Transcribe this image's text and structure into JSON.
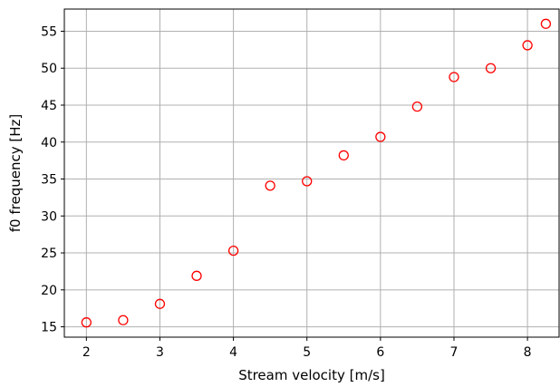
{
  "chart_data": {
    "type": "scatter",
    "title": "",
    "xlabel": "Stream velocity [m/s]",
    "ylabel": "f0 frequency [Hz]",
    "xlim": [
      1.7,
      8.43
    ],
    "ylim": [
      13.6,
      58.0
    ],
    "xticks": [
      2,
      3,
      4,
      5,
      6,
      7,
      8
    ],
    "yticks": [
      15,
      20,
      25,
      30,
      35,
      40,
      45,
      50,
      55
    ],
    "grid": true,
    "marker": "open-circle",
    "color": "#ff0000",
    "series": [
      {
        "x": [
          2.0,
          2.5,
          3.0,
          3.5,
          4.0,
          4.5,
          5.0,
          5.5,
          6.0,
          6.5,
          7.0,
          7.5,
          8.0,
          8.25
        ],
        "y": [
          15.6,
          15.9,
          18.1,
          21.9,
          25.3,
          34.1,
          34.7,
          38.2,
          40.7,
          44.8,
          48.8,
          50.0,
          53.1,
          56.0
        ]
      }
    ]
  }
}
